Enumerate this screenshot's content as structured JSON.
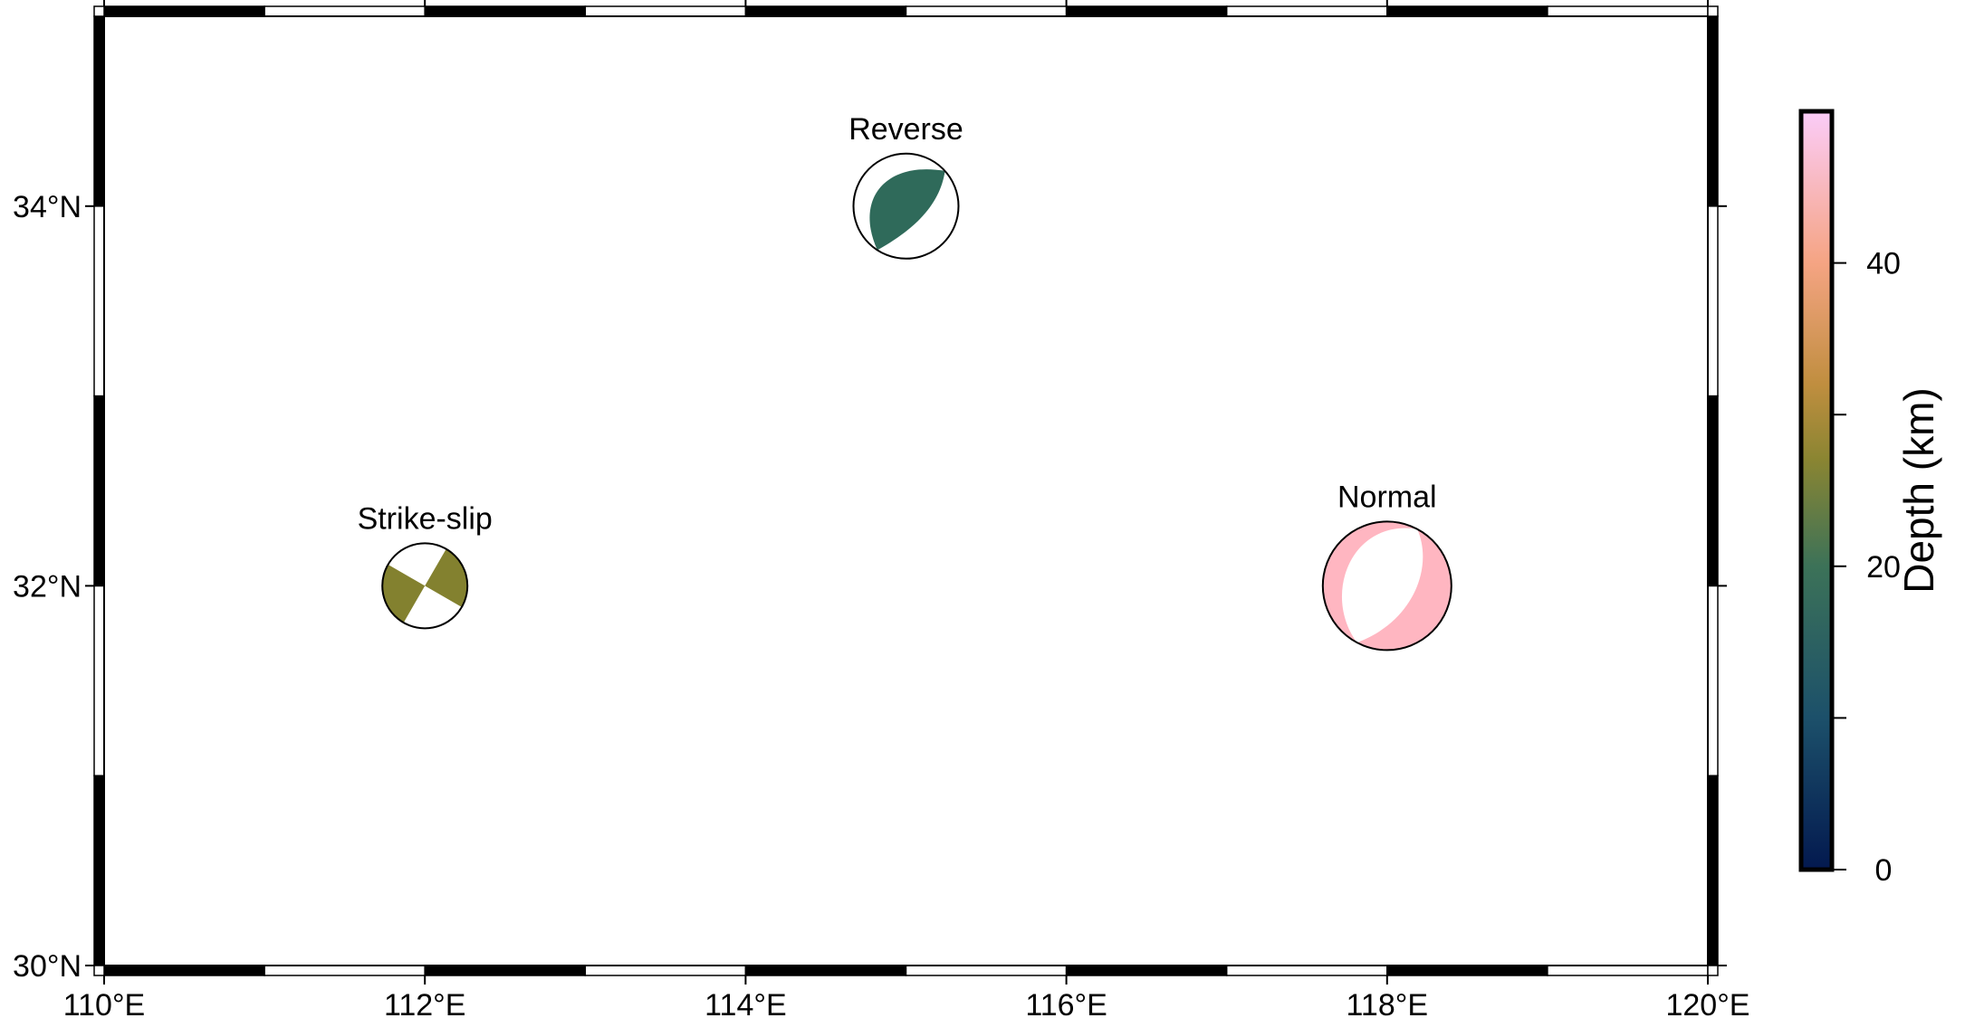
{
  "map": {
    "region": {
      "lon_min": 110,
      "lon_max": 120,
      "lat_min": 30,
      "lat_max": 35
    },
    "frame_interval_deg": 1,
    "x_ticks": [
      {
        "value": 110,
        "label": "110°E"
      },
      {
        "value": 112,
        "label": "112°E"
      },
      {
        "value": 114,
        "label": "114°E"
      },
      {
        "value": 116,
        "label": "116°E"
      },
      {
        "value": 118,
        "label": "118°E"
      },
      {
        "value": 120,
        "label": "120°E"
      }
    ],
    "y_ticks": [
      {
        "value": 30,
        "label": "30°N"
      },
      {
        "value": 32,
        "label": "32°N"
      },
      {
        "value": 34,
        "label": "34°N"
      }
    ]
  },
  "events": [
    {
      "label": "Strike-slip",
      "lon": 112,
      "lat": 32,
      "depth_km": 23,
      "mechanism": "strike-slip",
      "color": "#83812F"
    },
    {
      "label": "Reverse",
      "lon": 115,
      "lat": 34,
      "depth_km": 16,
      "mechanism": "reverse",
      "color": "#2F6A5A"
    },
    {
      "label": "Normal",
      "lon": 118,
      "lat": 32,
      "depth_km": 44,
      "mechanism": "normal",
      "color": "#FFB6C1"
    }
  ],
  "colorbar": {
    "label": "Depth (km)",
    "min": 0,
    "max": 50,
    "tick_labels": [
      {
        "value": 0,
        "label": "0"
      },
      {
        "value": 20,
        "label": "20"
      },
      {
        "value": 40,
        "label": "40"
      }
    ],
    "minor_tick_values": [
      10,
      30
    ],
    "gradient_stops": [
      {
        "value": 0,
        "color": "#03194F"
      },
      {
        "value": 10,
        "color": "#1C506A"
      },
      {
        "value": 20,
        "color": "#3C7258"
      },
      {
        "value": 27,
        "color": "#8A8532"
      },
      {
        "value": 32,
        "color": "#C08E3F"
      },
      {
        "value": 40,
        "color": "#F5A483"
      },
      {
        "value": 50,
        "color": "#FBCCF8"
      }
    ]
  }
}
